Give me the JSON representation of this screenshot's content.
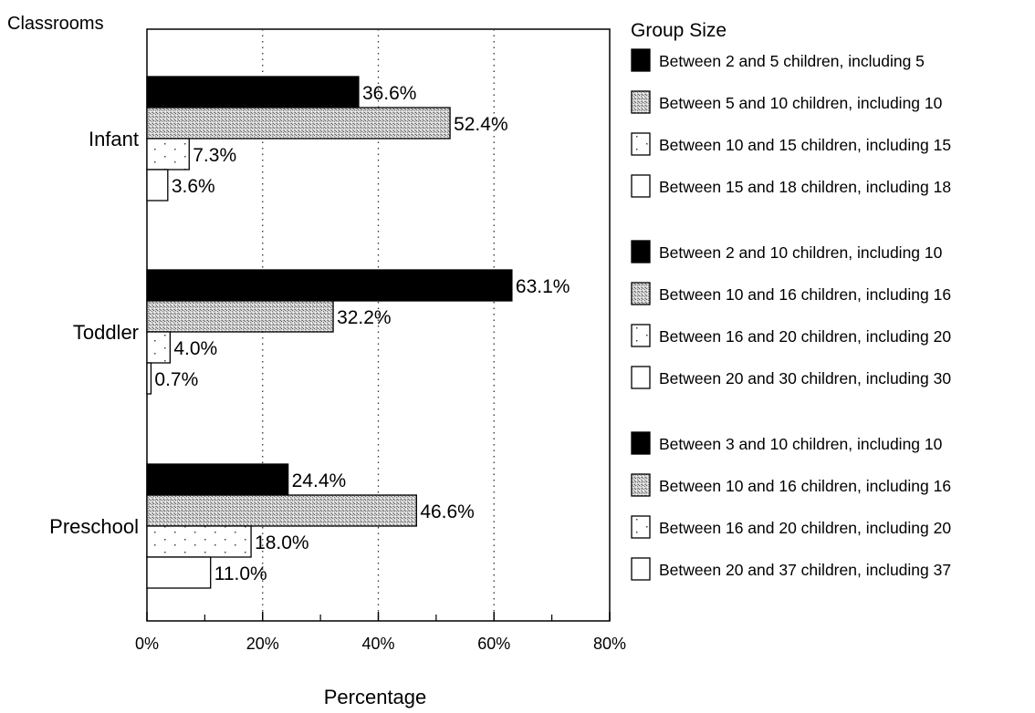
{
  "chart_data": {
    "type": "bar",
    "orientation": "horizontal",
    "y_axis_title": "Classrooms",
    "xlabel": "Percentage",
    "xlim": [
      0,
      80
    ],
    "x_ticks": [
      0,
      20,
      40,
      60,
      80
    ],
    "x_tick_labels": [
      "0%",
      "20%",
      "40%",
      "60%",
      "80%"
    ],
    "value_suffix": "%",
    "legend_title": "Group Size",
    "legend_position": "right",
    "categories": [
      {
        "name": "Infant",
        "bars": [
          {
            "value": 36.6,
            "label": "36.6%",
            "legend": "Between 2 and 5 children, including 5"
          },
          {
            "value": 52.4,
            "label": "52.4%",
            "legend": "Between 5 and 10 children, including 10"
          },
          {
            "value": 7.3,
            "label": "7.3%",
            "legend": "Between 10 and 15 children, including 15"
          },
          {
            "value": 3.6,
            "label": "3.6%",
            "legend": "Between 15 and 18 children, including 18"
          }
        ]
      },
      {
        "name": "Toddler",
        "bars": [
          {
            "value": 63.1,
            "label": "63.1%",
            "legend": "Between 2 and 10 children, including 10"
          },
          {
            "value": 32.2,
            "label": "32.2%",
            "legend": "Between 10 and 16 children, including 16"
          },
          {
            "value": 4.0,
            "label": "4.0%",
            "legend": "Between 16 and 20 children, including 20"
          },
          {
            "value": 0.7,
            "label": "0.7%",
            "legend": "Between 20 and 30 children, including 30"
          }
        ]
      },
      {
        "name": "Preschool",
        "bars": [
          {
            "value": 24.4,
            "label": "24.4%",
            "legend": "Between 3 and 10 children, including 10"
          },
          {
            "value": 46.6,
            "label": "46.6%",
            "legend": "Between 10 and 16 children, including 16"
          },
          {
            "value": 18.0,
            "label": "18.0%",
            "legend": "Between 16 and 20 children, including 20"
          },
          {
            "value": 11.0,
            "label": "11.0%",
            "legend": "Between 20 and 37 children, including 37"
          }
        ]
      }
    ],
    "fill_styles": [
      "solid-black",
      "gray-crosshatch",
      "sparse-dots",
      "white"
    ],
    "grid": "dotted vertical"
  }
}
